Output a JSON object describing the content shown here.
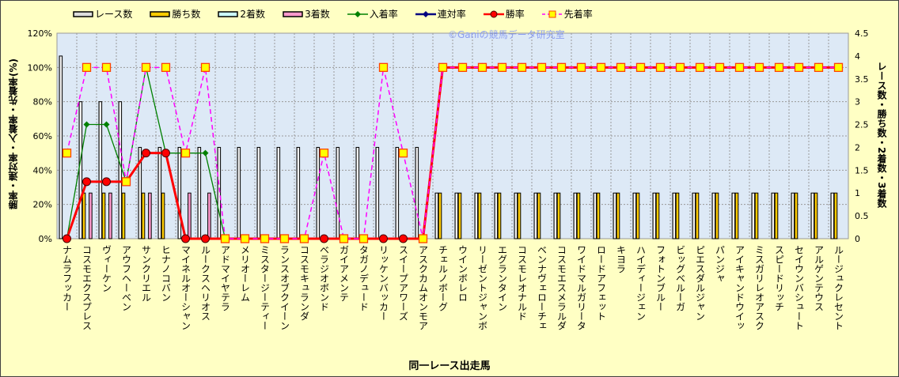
{
  "chart_data": {
    "type": "bar",
    "watermark": "©Ganiの競馬データ研究室",
    "xlabel": "同一レース出走馬",
    "ylabel": "勝率・連対率・入着率・先着率(%)",
    "y2label": "レース数・勝ち数・2着数・3着数",
    "ylim": [
      0,
      120
    ],
    "y2lim": [
      0,
      4.5
    ],
    "yticks": [
      "0%",
      "20%",
      "40%",
      "60%",
      "80%",
      "100%",
      "120%"
    ],
    "y2ticks": [
      "0",
      "0.5",
      "1",
      "1.5",
      "2",
      "2.5",
      "3",
      "3.5",
      "4",
      "4.5"
    ],
    "grid": true,
    "legend_position": "top",
    "categories": [
      "ナムラフッカー",
      "コスモエクスプレス",
      "ヴィーケン",
      "アウフヘーベン",
      "サンクリエル",
      "ヒナノコバン",
      "マイネルオーシャン",
      "ルークスヘリオス",
      "アドマイヤテラ",
      "メリオーレム",
      "ミスタージーティー",
      "ランスオブクイーン",
      "コスモキュランダ",
      "ベラジオボンド",
      "ガイアメンテ",
      "タガノデュード",
      "リッケンバッカー",
      "スイープアワーズ",
      "アスクカムオンモア",
      "チェルノボーグ",
      "ウインボレロ",
      "リーゼントジャンボ",
      "エグランタイン",
      "コスモレオナルド",
      "ベンナヴェローチェ",
      "コスモエスメラルダ",
      "ワイドマルガリータ",
      "ロードアフェット",
      "キヨラ",
      "ハイディージェン",
      "フォトンブルー",
      "ビッグベルーガ",
      "ピエスダルジャン",
      "パンジャ",
      "アイキャンドウイッ",
      "ミスガリレオアスク",
      "スピードリッチ",
      "セイウンバシュート",
      "アルゲンテウス",
      "ルージュクレセント"
    ],
    "bar_series": [
      {
        "name": "レース数",
        "axis": "right",
        "color": "#ffffff",
        "values": [
          4,
          3,
          3,
          3,
          2,
          2,
          2,
          2,
          2,
          2,
          2,
          2,
          2,
          2,
          2,
          2,
          2,
          2,
          2,
          1,
          1,
          1,
          1,
          1,
          1,
          1,
          1,
          1,
          1,
          1,
          1,
          1,
          1,
          1,
          1,
          1,
          1,
          1,
          1,
          1
        ]
      },
      {
        "name": "勝ち数",
        "axis": "right",
        "color": "#ffcc00",
        "values": [
          0,
          1,
          1,
          1,
          1,
          1,
          0,
          0,
          0,
          0,
          0,
          0,
          0,
          0,
          0,
          0,
          0,
          0,
          0,
          1,
          1,
          1,
          1,
          1,
          1,
          1,
          1,
          1,
          1,
          1,
          1,
          1,
          1,
          1,
          1,
          1,
          1,
          1,
          1,
          1
        ]
      },
      {
        "name": "2着数",
        "axis": "right",
        "color": "#ccffff",
        "values": [
          0,
          0,
          0,
          0,
          0,
          0,
          0,
          0,
          0,
          0,
          0,
          0,
          0,
          0,
          0,
          0,
          0,
          0,
          0,
          0,
          0,
          0,
          0,
          0,
          0,
          0,
          0,
          0,
          0,
          0,
          0,
          0,
          0,
          0,
          0,
          0,
          0,
          0,
          0,
          0
        ]
      },
      {
        "name": "3着数",
        "axis": "right",
        "color": "#ff99cc",
        "values": [
          0,
          1,
          1,
          0,
          1,
          0,
          1,
          1,
          0,
          0,
          0,
          0,
          0,
          0,
          0,
          0,
          0,
          0,
          0,
          0,
          0,
          0,
          0,
          0,
          0,
          0,
          0,
          0,
          0,
          0,
          0,
          0,
          0,
          0,
          0,
          0,
          0,
          0,
          0,
          0
        ]
      }
    ],
    "line_series": [
      {
        "name": "入着率",
        "axis": "left",
        "color": "#008000",
        "values": [
          0,
          66.7,
          66.7,
          33.3,
          100,
          50,
          50,
          50,
          0,
          0,
          0,
          0,
          0,
          0,
          0,
          0,
          0,
          0,
          0,
          100,
          100,
          100,
          100,
          100,
          100,
          100,
          100,
          100,
          100,
          100,
          100,
          100,
          100,
          100,
          100,
          100,
          100,
          100,
          100,
          100
        ]
      },
      {
        "name": "連対率",
        "axis": "left",
        "color": "#000080",
        "values": [
          0,
          33.3,
          33.3,
          33.3,
          50,
          50,
          0,
          0,
          0,
          0,
          0,
          0,
          0,
          0,
          0,
          0,
          0,
          0,
          0,
          100,
          100,
          100,
          100,
          100,
          100,
          100,
          100,
          100,
          100,
          100,
          100,
          100,
          100,
          100,
          100,
          100,
          100,
          100,
          100,
          100
        ]
      },
      {
        "name": "勝率",
        "axis": "left",
        "color": "#ff0000",
        "values": [
          0,
          33.3,
          33.3,
          33.3,
          50,
          50,
          0,
          0,
          0,
          0,
          0,
          0,
          0,
          0,
          0,
          0,
          0,
          0,
          0,
          100,
          100,
          100,
          100,
          100,
          100,
          100,
          100,
          100,
          100,
          100,
          100,
          100,
          100,
          100,
          100,
          100,
          100,
          100,
          100,
          100
        ]
      },
      {
        "name": "先着率",
        "axis": "left",
        "color": "#ff00ff",
        "values": [
          50,
          100,
          100,
          33.3,
          100,
          100,
          50,
          100,
          0,
          0,
          0,
          0,
          0,
          50,
          0,
          0,
          100,
          50,
          0,
          100,
          100,
          100,
          100,
          100,
          100,
          100,
          100,
          100,
          100,
          100,
          100,
          100,
          100,
          100,
          100,
          100,
          100,
          100,
          100,
          100
        ]
      }
    ]
  }
}
